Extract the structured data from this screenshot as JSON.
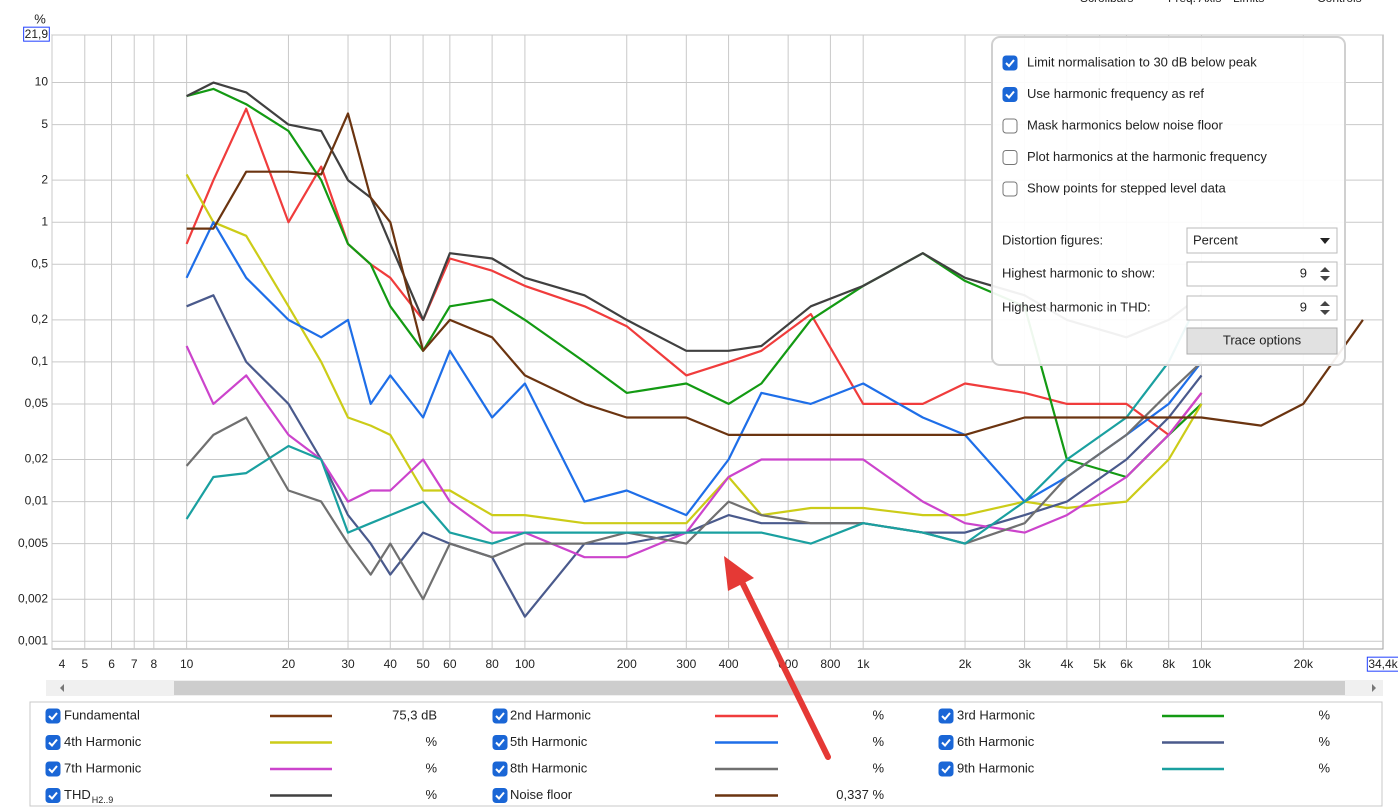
{
  "chart_data": {
    "type": "line",
    "y_unit": "%",
    "xlog": true,
    "ylog": true,
    "grid": true,
    "xlim": [
      4,
      34400
    ],
    "ylim": [
      0.00088,
      21.9
    ],
    "xticks": [
      4,
      5,
      6,
      7,
      8,
      10,
      20,
      30,
      40,
      50,
      60,
      80,
      100,
      200,
      300,
      400,
      600,
      800,
      {
        "value": 1000,
        "label": "1k"
      },
      {
        "value": 2000,
        "label": "2k"
      },
      {
        "value": 3000,
        "label": "3k"
      },
      {
        "value": 4000,
        "label": "4k"
      },
      {
        "value": 5000,
        "label": "5k"
      },
      {
        "value": 6000,
        "label": "6k"
      },
      {
        "value": 8000,
        "label": "8k"
      },
      {
        "value": 10000,
        "label": "10k"
      },
      {
        "value": 20000,
        "label": "20k"
      },
      {
        "value": 34400,
        "label": "34,4k"
      }
    ],
    "yticks": [
      {
        "value": 21.9,
        "label": "21,9"
      },
      10,
      5,
      2,
      1,
      {
        "value": 0.5,
        "label": "0,5"
      },
      {
        "value": 0.2,
        "label": "0,2"
      },
      {
        "value": 0.1,
        "label": "0,1"
      },
      {
        "value": 0.05,
        "label": "0,05"
      },
      {
        "value": 0.02,
        "label": "0,02"
      },
      {
        "value": 0.01,
        "label": "0,01"
      },
      {
        "value": 0.005,
        "label": "0,005"
      },
      {
        "value": 0.002,
        "label": "0,002"
      },
      {
        "value": 0.001,
        "label": "0,001"
      }
    ],
    "x": [
      10,
      12,
      15,
      20,
      25,
      30,
      35,
      40,
      50,
      60,
      80,
      100,
      150,
      200,
      300,
      400,
      500,
      700,
      1000,
      1500,
      2000,
      3000,
      4000,
      6000,
      8000,
      10000,
      15000,
      20000,
      30000
    ],
    "series": [
      {
        "name": "Fundamental",
        "color": "#7a3a12",
        "readout": "75,3 dB"
      },
      {
        "name": "2nd Harmonic",
        "color": "#f03c3c",
        "readout": "%",
        "values": [
          0.7,
          2,
          6.5,
          1,
          2.5,
          0.7,
          0.5,
          0.4,
          0.2,
          0.55,
          0.45,
          0.35,
          0.25,
          0.18,
          0.08,
          0.1,
          0.12,
          0.22,
          0.05,
          0.05,
          0.07,
          0.06,
          0.05,
          0.05,
          0.03,
          0.06,
          null,
          null,
          null
        ]
      },
      {
        "name": "3rd Harmonic",
        "color": "#139a13",
        "readout": "%",
        "values": [
          8,
          9,
          7,
          4.5,
          2,
          0.7,
          0.5,
          0.25,
          0.12,
          0.25,
          0.28,
          0.2,
          0.1,
          0.06,
          0.07,
          0.05,
          0.07,
          0.2,
          0.35,
          0.6,
          0.38,
          0.25,
          0.02,
          0.015,
          0.03,
          0.05,
          null,
          null,
          null
        ]
      },
      {
        "name": "4th Harmonic",
        "color": "#cccc18",
        "readout": "%",
        "values": [
          2.2,
          1,
          0.8,
          0.25,
          0.1,
          0.04,
          0.035,
          0.03,
          0.012,
          0.012,
          0.008,
          0.008,
          0.007,
          0.007,
          0.007,
          0.015,
          0.008,
          0.009,
          0.009,
          0.008,
          0.008,
          0.01,
          0.009,
          0.01,
          0.02,
          0.05,
          null,
          null,
          null
        ]
      },
      {
        "name": "5th Harmonic",
        "color": "#1e6ee8",
        "readout": "%",
        "values": [
          0.4,
          1,
          0.4,
          0.2,
          0.15,
          0.2,
          0.05,
          0.08,
          0.04,
          0.12,
          0.04,
          0.07,
          0.01,
          0.012,
          0.008,
          0.02,
          0.06,
          0.05,
          0.07,
          0.04,
          0.03,
          0.01,
          0.015,
          0.03,
          0.05,
          0.1,
          null,
          null,
          null
        ]
      },
      {
        "name": "6th Harmonic",
        "color": "#4a5a8c",
        "readout": "%",
        "values": [
          0.25,
          0.3,
          0.1,
          0.05,
          0.02,
          0.008,
          0.005,
          0.003,
          0.006,
          0.005,
          0.004,
          0.0015,
          0.005,
          0.005,
          0.006,
          0.008,
          0.007,
          0.007,
          0.007,
          0.006,
          0.006,
          0.008,
          0.01,
          0.02,
          0.04,
          0.08,
          null,
          null,
          null
        ]
      },
      {
        "name": "7th Harmonic",
        "color": "#cc44cc",
        "readout": "%",
        "values": [
          0.13,
          0.05,
          0.08,
          0.03,
          0.02,
          0.01,
          0.012,
          0.012,
          0.02,
          0.01,
          0.006,
          0.006,
          0.004,
          0.004,
          0.006,
          0.015,
          0.02,
          0.02,
          0.02,
          0.01,
          0.007,
          0.006,
          0.008,
          0.015,
          0.03,
          0.06,
          null,
          null,
          null
        ]
      },
      {
        "name": "8th Harmonic",
        "color": "#707070",
        "readout": "%",
        "values": [
          0.018,
          0.03,
          0.04,
          0.012,
          0.01,
          0.005,
          0.003,
          0.005,
          0.002,
          0.005,
          0.004,
          0.005,
          0.005,
          0.006,
          0.005,
          0.01,
          0.008,
          0.007,
          0.007,
          0.006,
          0.005,
          0.007,
          0.015,
          0.03,
          0.06,
          0.1,
          null,
          null,
          null
        ]
      },
      {
        "name": "9th Harmonic",
        "color": "#1aa0a0",
        "readout": "%",
        "values": [
          0.0075,
          0.015,
          0.016,
          0.025,
          0.02,
          0.006,
          0.007,
          0.008,
          0.01,
          0.006,
          0.005,
          0.006,
          0.006,
          0.006,
          0.006,
          0.006,
          0.006,
          0.005,
          0.007,
          0.006,
          0.005,
          0.01,
          0.02,
          0.04,
          0.1,
          0.3,
          null,
          null,
          null
        ]
      },
      {
        "name": "THD",
        "name_sub": "H2..9",
        "color": "#404040",
        "readout": "%",
        "values": [
          8,
          10,
          8.5,
          5,
          4.5,
          2,
          1.5,
          0.7,
          0.2,
          0.6,
          0.55,
          0.4,
          0.3,
          0.2,
          0.12,
          0.12,
          0.13,
          0.25,
          0.35,
          0.6,
          0.4,
          0.3,
          0.2,
          0.15,
          0.2,
          0.3,
          null,
          null,
          null
        ]
      },
      {
        "name": "Noise floor",
        "color": "#6b3410",
        "readout": "0,337 %",
        "values": [
          0.9,
          0.9,
          2.3,
          2.3,
          2.2,
          6,
          1.5,
          1,
          0.12,
          0.2,
          0.15,
          0.08,
          0.05,
          0.04,
          0.04,
          0.03,
          0.03,
          0.03,
          0.03,
          0.03,
          0.03,
          0.04,
          0.04,
          0.04,
          0.04,
          0.04,
          0.035,
          0.05,
          0.2
        ]
      }
    ]
  },
  "toolbar": [
    "Scrollbars",
    "Freq. Axis",
    "Limits",
    "Controls"
  ],
  "options": {
    "checkboxes": [
      {
        "label": "Limit normalisation to 30 dB below peak",
        "checked": true
      },
      {
        "label": "Use harmonic frequency as ref",
        "checked": true
      },
      {
        "label": "Mask harmonics below noise floor",
        "checked": false
      },
      {
        "label": "Plot harmonics at the harmonic frequency",
        "checked": false
      },
      {
        "label": "Show points for stepped level data",
        "checked": false
      }
    ],
    "distortion_figures": {
      "label": "Distortion figures:",
      "value": "Percent"
    },
    "highest_show": {
      "label": "Highest harmonic to show:",
      "value": 9
    },
    "highest_thd": {
      "label": "Highest harmonic in THD:",
      "value": 9
    },
    "button": "Trace options"
  }
}
